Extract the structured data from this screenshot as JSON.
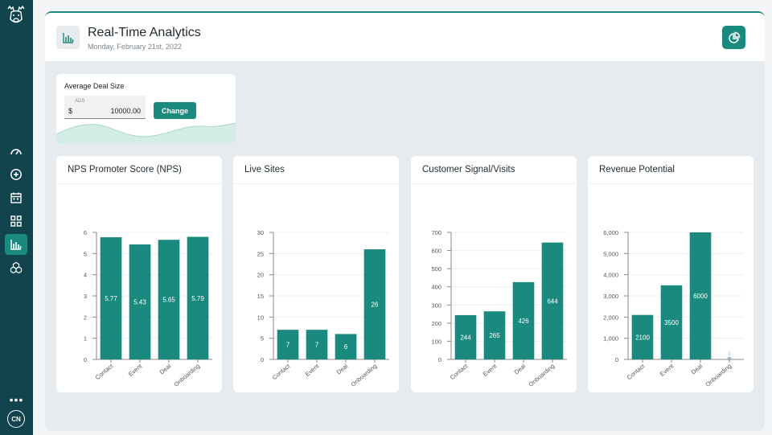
{
  "sidebar": {
    "items": [
      {
        "name": "gauge-icon"
      },
      {
        "name": "plus-circle-icon"
      },
      {
        "name": "calendar-icon"
      },
      {
        "name": "grid-icon"
      },
      {
        "name": "bar-chart-icon",
        "active": true
      },
      {
        "name": "cubes-icon"
      }
    ],
    "more_label": "•••",
    "avatar_initials": "CN"
  },
  "header": {
    "title": "Real-Time Analytics",
    "date": "Monday, February 21st, 2022",
    "left_icon": "bar-chart-icon",
    "right_icon": "pie-chart-icon"
  },
  "ads": {
    "label": "Average Deal Size",
    "input_label": "ADS",
    "currency": "$",
    "value": "10000.00",
    "button_label": "Change"
  },
  "colors": {
    "accent": "#1b8a7e",
    "sidebar": "#11444d"
  },
  "chart_data": [
    {
      "type": "bar",
      "title": "NPS Promoter Score (NPS)",
      "categories": [
        "Contact",
        "Event",
        "Deal",
        "Onboarding"
      ],
      "values": [
        5.77,
        5.43,
        5.65,
        5.79
      ],
      "labels": [
        "5.77",
        "5.43",
        "5.65",
        "5.79"
      ],
      "ylim": [
        0,
        6
      ],
      "yticks": [
        "0",
        "1",
        "2",
        "3",
        "4",
        "5",
        "6"
      ]
    },
    {
      "type": "bar",
      "title": "Live Sites",
      "categories": [
        "Contact",
        "Event",
        "Deal",
        "Onboarding"
      ],
      "values": [
        7,
        7,
        6,
        26
      ],
      "labels": [
        "7",
        "7",
        "6",
        "26"
      ],
      "ylim": [
        0,
        30
      ],
      "yticks": [
        "0",
        "5",
        "10",
        "15",
        "20",
        "25",
        "30"
      ]
    },
    {
      "type": "bar",
      "title": "Customer Signal/Visits",
      "categories": [
        "Contact",
        "Event",
        "Deal",
        "Onboarding"
      ],
      "values": [
        244,
        265,
        426,
        644
      ],
      "labels": [
        "244",
        "265",
        "426",
        "644"
      ],
      "ylim": [
        0,
        700
      ],
      "yticks": [
        "0",
        "100",
        "200",
        "300",
        "400",
        "500",
        "600",
        "700"
      ]
    },
    {
      "type": "bar",
      "title": "Revenue Potential",
      "categories": [
        "Contact",
        "Event",
        "Deal",
        "Onboarding"
      ],
      "values": [
        2100,
        3500,
        6000,
        0
      ],
      "labels": [
        "2100",
        "3500",
        "6000",
        "0"
      ],
      "ylim": [
        0,
        6000
      ],
      "yticks": [
        "0",
        "1,000",
        "2,000",
        "3,000",
        "4,000",
        "5,000",
        "6,000"
      ]
    }
  ]
}
